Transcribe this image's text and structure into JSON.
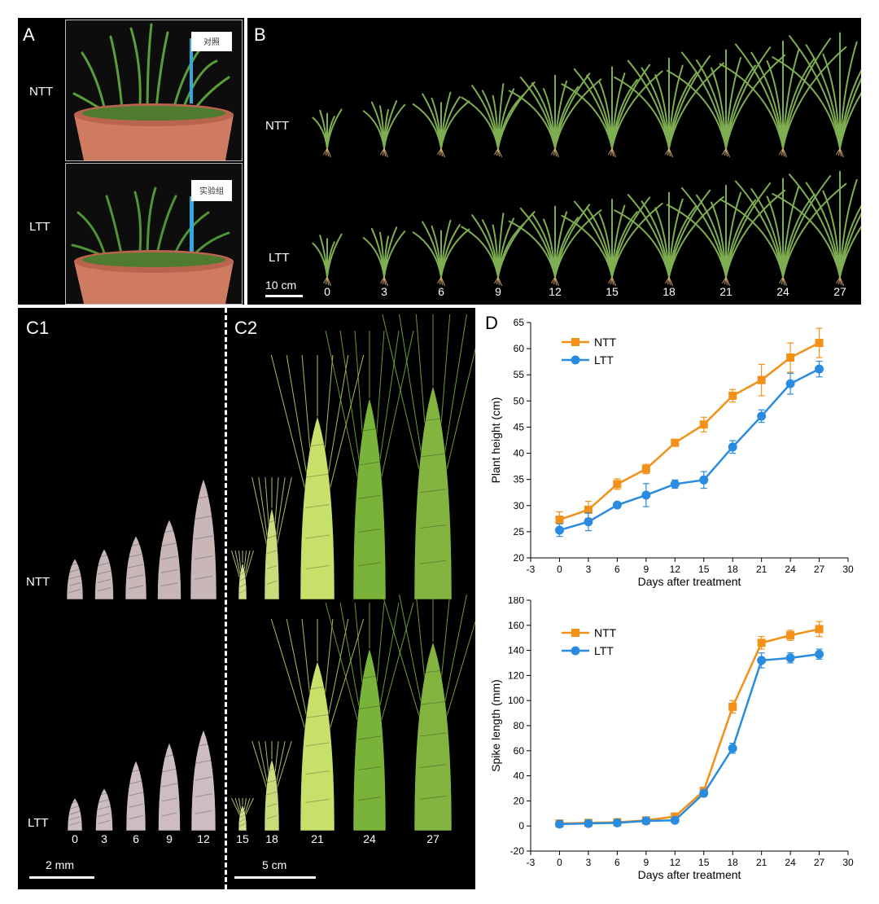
{
  "panel_a": {
    "label": "A",
    "rows": [
      {
        "label": "NTT",
        "tag": "对照"
      },
      {
        "label": "LTT",
        "tag": "实验组"
      }
    ]
  },
  "panel_b": {
    "label": "B",
    "rows": [
      "NTT",
      "LTT"
    ],
    "days": [
      "0",
      "3",
      "6",
      "9",
      "12",
      "15",
      "18",
      "21",
      "24",
      "27"
    ],
    "scale": "10 cm"
  },
  "panel_c1": {
    "label": "C1",
    "rows": [
      "NTT",
      "LTT"
    ],
    "days": [
      "0",
      "3",
      "6",
      "9",
      "12"
    ],
    "scale": "2 mm"
  },
  "panel_c2": {
    "label": "C2",
    "days": [
      "15",
      "18",
      "21",
      "24",
      "27"
    ],
    "scale": "5 cm"
  },
  "panel_d": {
    "label": "D"
  },
  "chart_data": [
    {
      "type": "line",
      "xlabel": "Days after treatment",
      "ylabel": "Plant height (cm)",
      "xlim": [
        -3,
        30
      ],
      "ylim": [
        20,
        65
      ],
      "xticks": [
        "-3",
        "0",
        "3",
        "6",
        "9",
        "12",
        "15",
        "18",
        "21",
        "24",
        "27",
        "30"
      ],
      "yticks": [
        "20",
        "25",
        "30",
        "35",
        "40",
        "45",
        "50",
        "55",
        "60",
        "65"
      ],
      "legend": "top-left",
      "x": [
        0,
        3,
        6,
        9,
        12,
        15,
        18,
        21,
        24,
        27
      ],
      "series": [
        {
          "name": "NTT",
          "color": "#f39017",
          "values": [
            27.3,
            29.2,
            34.1,
            37.0,
            42.0,
            45.5,
            51.0,
            54.0,
            58.3,
            61.1
          ],
          "errors": [
            1.5,
            1.6,
            1.0,
            0.9,
            0.4,
            1.4,
            1.2,
            3.0,
            2.8,
            2.8
          ]
        },
        {
          "name": "LTT",
          "color": "#2a8ce0",
          "values": [
            25.3,
            26.9,
            30.1,
            32.0,
            34.1,
            34.9,
            41.2,
            47.1,
            53.3,
            56.1
          ],
          "errors": [
            1.2,
            1.7,
            0.5,
            2.2,
            0.8,
            1.6,
            1.2,
            1.2,
            2.0,
            1.5
          ]
        }
      ]
    },
    {
      "type": "line",
      "xlabel": "Days after treatment",
      "ylabel": "Spike length (mm)",
      "xlim": [
        -3,
        30
      ],
      "ylim": [
        -20,
        180
      ],
      "xticks": [
        "-3",
        "0",
        "3",
        "6",
        "9",
        "12",
        "15",
        "18",
        "21",
        "24",
        "27",
        "30"
      ],
      "yticks": [
        "-20",
        "0",
        "20",
        "40",
        "60",
        "80",
        "100",
        "120",
        "140",
        "160",
        "180"
      ],
      "legend": "top-left",
      "x": [
        0,
        3,
        6,
        9,
        12,
        15,
        18,
        21,
        24,
        27
      ],
      "series": [
        {
          "name": "NTT",
          "color": "#f39017",
          "values": [
            2.0,
            2.5,
            3.0,
            4.5,
            7.5,
            28.0,
            95.0,
            146.0,
            152.0,
            157.0
          ],
          "errors": [
            1.0,
            1.2,
            1.0,
            1.2,
            1.0,
            2.0,
            5.0,
            5.0,
            4.0,
            6.0
          ]
        },
        {
          "name": "LTT",
          "color": "#2a8ce0",
          "values": [
            1.5,
            2.0,
            2.5,
            4.0,
            4.5,
            26.0,
            62.0,
            132.0,
            134.0,
            137.0
          ],
          "errors": [
            0.8,
            0.8,
            0.8,
            1.0,
            0.8,
            2.0,
            4.0,
            6.0,
            4.0,
            4.0
          ]
        }
      ]
    }
  ]
}
